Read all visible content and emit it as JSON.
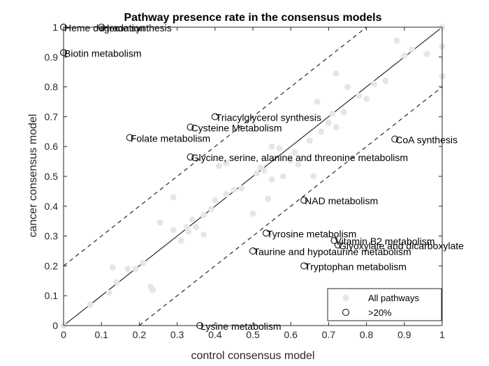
{
  "chart_data": {
    "type": "scatter",
    "title": "Pathway presence rate in the consensus models",
    "xlabel": "control consensus model",
    "ylabel": "cancer consensus model",
    "xlim": [
      0,
      1
    ],
    "ylim": [
      0,
      1
    ],
    "xticks": [
      "0",
      "0.1",
      "0.2",
      "0.3",
      "0.4",
      "0.5",
      "0.6",
      "0.7",
      "0.8",
      "0.9",
      "1"
    ],
    "yticks": [
      "0",
      "0.1",
      "0.2",
      "0.3",
      "0.4",
      "0.5",
      "0.6",
      "0.7",
      "0.8",
      "0.9",
      "1"
    ],
    "grid": false,
    "legend_position": "bottom-right",
    "reference_lines": {
      "solid": {
        "intercept": 0,
        "slope": 1
      },
      "dashed_upper": {
        "intercept": 0.2,
        "slope": 1
      },
      "dashed_lower": {
        "intercept": -0.2,
        "slope": 1
      }
    },
    "series": [
      {
        "name": "All pathways",
        "marker": "filled-circle",
        "color": "#e6e6e6",
        "points": [
          [
            0,
            0
          ],
          [
            0,
            1
          ],
          [
            0,
            0.915
          ],
          [
            0.07,
            0.07
          ],
          [
            0.12,
            0.11
          ],
          [
            0.13,
            0.195
          ],
          [
            0.14,
            0.145
          ],
          [
            0.17,
            0.19
          ],
          [
            0.19,
            0.19
          ],
          [
            0.21,
            0.21
          ],
          [
            0.23,
            0.13
          ],
          [
            0.235,
            0.12
          ],
          [
            0.255,
            0.345
          ],
          [
            0.29,
            0.43
          ],
          [
            0.29,
            0.32
          ],
          [
            0.31,
            0.285
          ],
          [
            0.325,
            0.33
          ],
          [
            0.33,
            0.315
          ],
          [
            0.34,
            0.355
          ],
          [
            0.35,
            0.33
          ],
          [
            0.37,
            0.305
          ],
          [
            0.37,
            0.37
          ],
          [
            0.39,
            0.39
          ],
          [
            0.4,
            0.42
          ],
          [
            0.41,
            0.535
          ],
          [
            0.43,
            0.545
          ],
          [
            0.43,
            0.44
          ],
          [
            0.45,
            0.455
          ],
          [
            0.47,
            0.46
          ],
          [
            0.5,
            0.375
          ],
          [
            0.51,
            0.51
          ],
          [
            0.52,
            0.53
          ],
          [
            0.53,
            0.52
          ],
          [
            0.54,
            0.425
          ],
          [
            0.55,
            0.49
          ],
          [
            0.57,
            0.595
          ],
          [
            0.58,
            0.5
          ],
          [
            0.6,
            0.555
          ],
          [
            0.61,
            0.58
          ],
          [
            0.62,
            0.54
          ],
          [
            0.65,
            0.62
          ],
          [
            0.66,
            0.5
          ],
          [
            0.67,
            0.75
          ],
          [
            0.68,
            0.65
          ],
          [
            0.7,
            0.68
          ],
          [
            0.71,
            0.71
          ],
          [
            0.72,
            0.845
          ],
          [
            0.72,
            0.665
          ],
          [
            0.74,
            0.715
          ],
          [
            0.75,
            0.8
          ],
          [
            0.78,
            0.77
          ],
          [
            0.8,
            0.76
          ],
          [
            0.82,
            0.81
          ],
          [
            0.85,
            0.82
          ],
          [
            0.88,
            0.955
          ],
          [
            0.9,
            0.905
          ],
          [
            0.92,
            0.925
          ],
          [
            0.96,
            0.91
          ],
          [
            1,
            1
          ],
          [
            1,
            0.935
          ],
          [
            1,
            0.835
          ],
          [
            0.55,
            0.6
          ]
        ]
      },
      {
        "name": ">20%",
        "marker": "open-circle",
        "color": "#000000",
        "points": [
          {
            "x": 0,
            "y": 1,
            "label": "Heme degradation"
          },
          {
            "x": 0.1,
            "y": 1,
            "label": "Heme synthesis"
          },
          {
            "x": 0,
            "y": 0.915,
            "label": "Biotin metabolism"
          },
          {
            "x": 0.4,
            "y": 0.7,
            "label": "Triacylglycerol synthesis"
          },
          {
            "x": 0.335,
            "y": 0.665,
            "label": "Cysteine Metabolism"
          },
          {
            "x": 0.175,
            "y": 0.63,
            "label": "Folate metabolism"
          },
          {
            "x": 0.875,
            "y": 0.625,
            "label": "CoA synthesis"
          },
          {
            "x": 0.335,
            "y": 0.565,
            "label": "Glycine, serine, alanine and threonine metabolism"
          },
          {
            "x": 0.635,
            "y": 0.42,
            "label": "NAD metabolism"
          },
          {
            "x": 0.535,
            "y": 0.31,
            "label": "Tyrosine metabolism"
          },
          {
            "x": 0.715,
            "y": 0.285,
            "label": "Vitamin B2 metabolism"
          },
          {
            "x": 0.725,
            "y": 0.27,
            "label": "Glyoxylate and dicarboxylate"
          },
          {
            "x": 0.5,
            "y": 0.25,
            "label": "Taurine and hypotaurine metabolism"
          },
          {
            "x": 0.635,
            "y": 0.2,
            "label": "Tryptophan metabolism"
          },
          {
            "x": 0.36,
            "y": 0,
            "label": "Lysine metabolism"
          }
        ]
      }
    ]
  }
}
